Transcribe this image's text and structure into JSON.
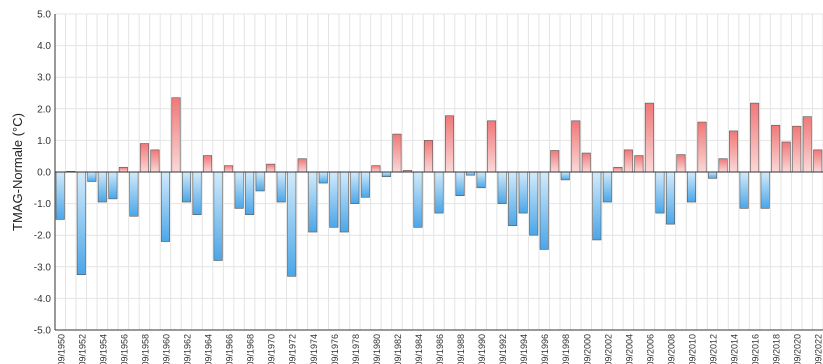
{
  "chart_data": {
    "type": "bar",
    "title": "",
    "xlabel": "",
    "ylabel": "TMAG-Normale (°C)",
    "ylim": [
      -5.0,
      5.0
    ],
    "yticks": [
      "5.0",
      "4.0",
      "3.0",
      "2.0",
      "1.0",
      "0.0",
      "-1.0",
      "-2.0",
      "-3.0",
      "-4.0",
      "-5.0"
    ],
    "grid": true,
    "legend": "none",
    "xtick_labels": [
      "09/1950",
      "09/1952",
      "09/1954",
      "09/1956",
      "09/1958",
      "09/1960",
      "09/1962",
      "09/1964",
      "09/1966",
      "09/1968",
      "09/1970",
      "09/1972",
      "09/1974",
      "09/1976",
      "09/1978",
      "09/1980",
      "09/1982",
      "09/1984",
      "09/1986",
      "09/1988",
      "09/1990",
      "09/1992",
      "09/1994",
      "09/1996",
      "09/1998",
      "09/2000",
      "09/2002",
      "09/2004",
      "09/2006",
      "09/2008",
      "09/2010",
      "09/2012",
      "09/2014",
      "09/2016",
      "09/2018",
      "09/2020",
      "09/2022"
    ],
    "categories": [
      "09/1950",
      "09/1951",
      "09/1952",
      "09/1953",
      "09/1954",
      "09/1955",
      "09/1956",
      "09/1957",
      "09/1958",
      "09/1959",
      "09/1960",
      "09/1961",
      "09/1962",
      "09/1963",
      "09/1964",
      "09/1965",
      "09/1966",
      "09/1967",
      "09/1968",
      "09/1969",
      "09/1970",
      "09/1971",
      "09/1972",
      "09/1973",
      "09/1974",
      "09/1975",
      "09/1976",
      "09/1977",
      "09/1978",
      "09/1979",
      "09/1980",
      "09/1981",
      "09/1982",
      "09/1983",
      "09/1984",
      "09/1985",
      "09/1986",
      "09/1987",
      "09/1988",
      "09/1989",
      "09/1990",
      "09/1991",
      "09/1992",
      "09/1993",
      "09/1994",
      "09/1995",
      "09/1996",
      "09/1997",
      "09/1998",
      "09/1999",
      "09/2000",
      "09/2001",
      "09/2002",
      "09/2003",
      "09/2004",
      "09/2005",
      "09/2006",
      "09/2007",
      "09/2008",
      "09/2009",
      "09/2010",
      "09/2011",
      "09/2012",
      "09/2013",
      "09/2014",
      "09/2015",
      "09/2016",
      "09/2017",
      "09/2018",
      "09/2019",
      "09/2020",
      "09/2021",
      "09/2022"
    ],
    "values": [
      -1.5,
      0.02,
      -3.25,
      -0.3,
      -0.95,
      -0.85,
      0.15,
      -1.4,
      0.9,
      0.7,
      -2.2,
      2.35,
      -0.95,
      -1.35,
      0.52,
      -2.8,
      0.2,
      -1.15,
      -1.35,
      -0.6,
      0.25,
      -0.95,
      -3.3,
      0.42,
      -1.9,
      -0.35,
      -1.75,
      -1.9,
      -1.0,
      -0.8,
      0.2,
      -0.15,
      1.2,
      0.05,
      -1.75,
      1.0,
      -1.3,
      1.78,
      -0.75,
      -0.1,
      -0.5,
      1.62,
      -1.0,
      -1.7,
      -1.3,
      -2.0,
      -2.45,
      0.68,
      -0.25,
      1.62,
      0.6,
      -2.15,
      -0.95,
      0.15,
      0.7,
      0.52,
      2.18,
      -1.3,
      -1.65,
      0.55,
      -0.95,
      1.58,
      -0.2,
      0.42,
      1.3,
      -1.15,
      2.18,
      -1.15,
      1.48,
      0.95,
      1.45,
      1.75,
      0.7
    ],
    "colors": {
      "positive_top": "#f07878",
      "positive_bottom": "#fbd8d8",
      "negative_top": "#d3ebfb",
      "negative_bottom": "#4aa6e8",
      "bar_edge": "#555555",
      "grid": "#e4e4e4",
      "axis": "#333333"
    }
  }
}
